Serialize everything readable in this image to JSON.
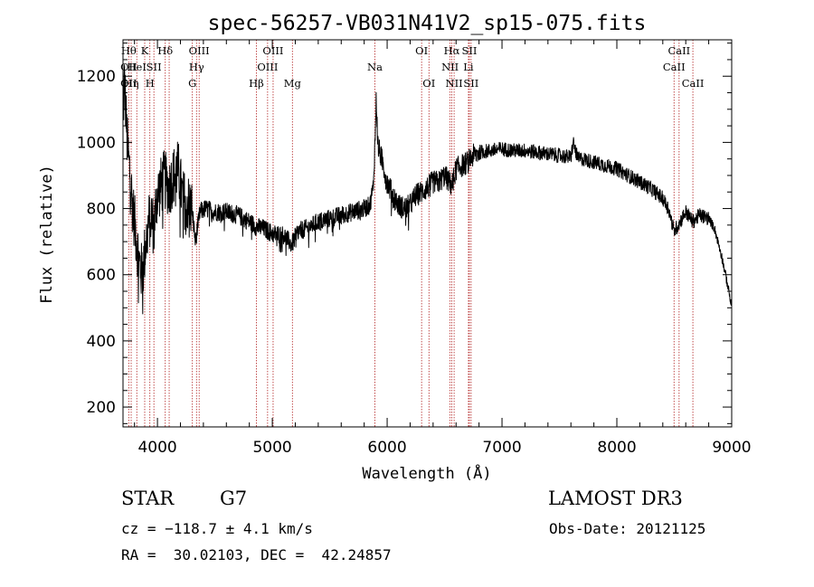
{
  "chart_data": {
    "type": "line",
    "title": "spec-56257-VB031N41V2_sp15-075.fits",
    "xlabel": "Wavelength (Å)",
    "ylabel": "Flux (relative)",
    "xlim": [
      3700,
      9000
    ],
    "ylim": [
      140,
      1310
    ],
    "xticks": [
      4000,
      5000,
      6000,
      7000,
      8000,
      9000
    ],
    "yticks": [
      200,
      400,
      600,
      800,
      1000,
      1200
    ],
    "grid": false,
    "line_color": "#000000",
    "marker_color": "#b22222",
    "spectrum_anchors": [
      [
        3700,
        1050
      ],
      [
        3712,
        1190
      ],
      [
        3722,
        1120
      ],
      [
        3735,
        1010
      ],
      [
        3750,
        940
      ],
      [
        3765,
        900
      ],
      [
        3780,
        820
      ],
      [
        3800,
        760
      ],
      [
        3820,
        700
      ],
      [
        3840,
        640
      ],
      [
        3860,
        610
      ],
      [
        3875,
        620
      ],
      [
        3900,
        700
      ],
      [
        3925,
        760
      ],
      [
        3950,
        780
      ],
      [
        3970,
        730
      ],
      [
        3990,
        830
      ],
      [
        4020,
        860
      ],
      [
        4060,
        890
      ],
      [
        4100,
        860
      ],
      [
        4140,
        900
      ],
      [
        4180,
        920
      ],
      [
        4220,
        830
      ],
      [
        4260,
        820
      ],
      [
        4300,
        800
      ],
      [
        4330,
        700
      ],
      [
        4370,
        790
      ],
      [
        4420,
        800
      ],
      [
        4500,
        790
      ],
      [
        4600,
        790
      ],
      [
        4700,
        780
      ],
      [
        4800,
        760
      ],
      [
        4860,
        745
      ],
      [
        4920,
        740
      ],
      [
        5000,
        725
      ],
      [
        5100,
        720
      ],
      [
        5170,
        690
      ],
      [
        5220,
        730
      ],
      [
        5300,
        740
      ],
      [
        5400,
        760
      ],
      [
        5500,
        770
      ],
      [
        5600,
        780
      ],
      [
        5700,
        790
      ],
      [
        5800,
        800
      ],
      [
        5850,
        810
      ],
      [
        5880,
        870
      ],
      [
        5895,
        1010
      ],
      [
        5905,
        1130
      ],
      [
        5920,
        990
      ],
      [
        5960,
        940
      ],
      [
        6000,
        880
      ],
      [
        6050,
        840
      ],
      [
        6100,
        810
      ],
      [
        6150,
        800
      ],
      [
        6200,
        810
      ],
      [
        6250,
        840
      ],
      [
        6300,
        850
      ],
      [
        6340,
        860
      ],
      [
        6400,
        880
      ],
      [
        6450,
        880
      ],
      [
        6500,
        900
      ],
      [
        6562,
        870
      ],
      [
        6600,
        920
      ],
      [
        6650,
        930
      ],
      [
        6700,
        940
      ],
      [
        6750,
        960
      ],
      [
        6800,
        970
      ],
      [
        6900,
        975
      ],
      [
        7000,
        980
      ],
      [
        7100,
        975
      ],
      [
        7200,
        975
      ],
      [
        7300,
        970
      ],
      [
        7400,
        965
      ],
      [
        7500,
        960
      ],
      [
        7600,
        955
      ],
      [
        7620,
        1000
      ],
      [
        7660,
        950
      ],
      [
        7700,
        950
      ],
      [
        7800,
        940
      ],
      [
        7900,
        930
      ],
      [
        8000,
        920
      ],
      [
        8100,
        900
      ],
      [
        8200,
        880
      ],
      [
        8300,
        860
      ],
      [
        8400,
        830
      ],
      [
        8450,
        800
      ],
      [
        8498,
        730
      ],
      [
        8542,
        755
      ],
      [
        8600,
        790
      ],
      [
        8662,
        760
      ],
      [
        8720,
        780
      ],
      [
        8800,
        770
      ],
      [
        8850,
        740
      ],
      [
        8880,
        700
      ],
      [
        8910,
        660
      ],
      [
        8940,
        610
      ],
      [
        8970,
        560
      ],
      [
        8990,
        520
      ],
      [
        9000,
        500
      ]
    ],
    "lines": [
      {
        "wl": 3750,
        "labels": [
          {
            "t": "Hθ",
            "row": 0
          },
          {
            "t": "OII",
            "row": 1
          },
          {
            "t": "OII",
            "row": 2
          }
        ]
      },
      {
        "wl": 3771,
        "labels": [
          {
            "t": "Hη",
            "row": 2
          }
        ]
      },
      {
        "wl": 3820,
        "labels": [
          {
            "t": "HeI",
            "row": 1
          }
        ]
      },
      {
        "wl": 3889,
        "labels": [
          {
            "t": "K",
            "row": 0
          }
        ]
      },
      {
        "wl": 3934,
        "labels": [
          {
            "t": "H",
            "row": 2
          }
        ]
      },
      {
        "wl": 3969,
        "labels": [
          {
            "t": "SII",
            "row": 1
          }
        ]
      },
      {
        "wl": 4068,
        "labels": [
          {
            "t": "Hδ",
            "row": 0
          }
        ]
      },
      {
        "wl": 4102,
        "labels": []
      },
      {
        "wl": 4304,
        "labels": [
          {
            "t": "G",
            "row": 2
          }
        ]
      },
      {
        "wl": 4340,
        "labels": [
          {
            "t": "Hγ",
            "row": 1
          }
        ]
      },
      {
        "wl": 4363,
        "labels": [
          {
            "t": "OIII",
            "row": 0
          }
        ]
      },
      {
        "wl": 4861,
        "labels": [
          {
            "t": "Hβ",
            "row": 2
          }
        ]
      },
      {
        "wl": 4959,
        "labels": [
          {
            "t": "OIII",
            "row": 1
          }
        ]
      },
      {
        "wl": 5007,
        "labels": [
          {
            "t": "OIII",
            "row": 0
          }
        ]
      },
      {
        "wl": 5175,
        "labels": [
          {
            "t": "Mg",
            "row": 2
          }
        ]
      },
      {
        "wl": 5893,
        "labels": [
          {
            "t": "Na",
            "row": 1
          }
        ]
      },
      {
        "wl": 6300,
        "labels": [
          {
            "t": "OI",
            "row": 0
          }
        ]
      },
      {
        "wl": 6364,
        "labels": [
          {
            "t": "OI",
            "row": 2
          }
        ]
      },
      {
        "wl": 6548,
        "labels": [
          {
            "t": "NII",
            "row": 1
          }
        ]
      },
      {
        "wl": 6563,
        "labels": [
          {
            "t": "Hα",
            "row": 0
          }
        ]
      },
      {
        "wl": 6583,
        "labels": [
          {
            "t": "NII",
            "row": 2
          }
        ]
      },
      {
        "wl": 6708,
        "labels": [
          {
            "t": "Li",
            "row": 1
          }
        ]
      },
      {
        "wl": 6716,
        "labels": [
          {
            "t": "SII",
            "row": 0
          }
        ]
      },
      {
        "wl": 6731,
        "labels": [
          {
            "t": "SII",
            "row": 2
          }
        ]
      },
      {
        "wl": 8498,
        "labels": [
          {
            "t": "CaII",
            "row": 1
          }
        ]
      },
      {
        "wl": 8542,
        "labels": [
          {
            "t": "CaII",
            "row": 0
          }
        ]
      },
      {
        "wl": 8662,
        "labels": [
          {
            "t": "CaII",
            "row": 2
          }
        ]
      }
    ]
  },
  "info": {
    "class": "STAR",
    "subclass": "G7",
    "survey": "LAMOST DR3",
    "cz": "cz = −118.7 ± 4.1 km/s",
    "obs_date": "Obs-Date: 20121125",
    "coords": "RA =  30.02103, DEC =  42.24857"
  }
}
